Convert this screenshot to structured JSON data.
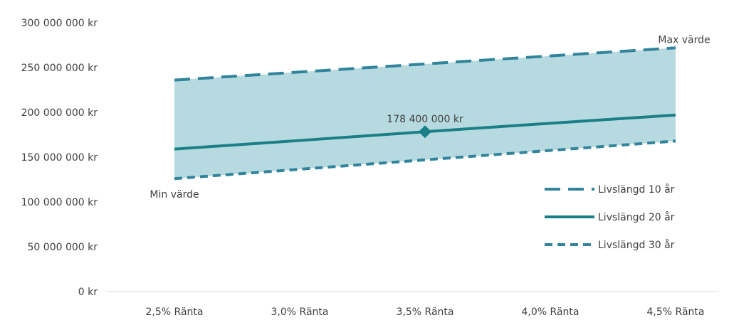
{
  "chart_data": {
    "type": "line",
    "categories": [
      "2,5% Ränta",
      "3,0% Ränta",
      "3,5% Ränta",
      "4,0% Ränta",
      "4,5% Ränta"
    ],
    "ylim": [
      0,
      300000000
    ],
    "yticks": [
      0,
      50000000,
      100000000,
      150000000,
      200000000,
      250000000,
      300000000
    ],
    "ytick_labels": [
      "0 kr",
      "50 000 000 kr",
      "100 000 000 kr",
      "150 000 000 kr",
      "200 000 000 kr",
      "250 000 000 kr",
      "300 000 000 kr"
    ],
    "series": [
      {
        "name": "Livslängd 10 år",
        "style": "long-dash",
        "color": "#31849b",
        "values": [
          236000000,
          245000000,
          254000000,
          263000000,
          272000000
        ]
      },
      {
        "name": "Livslängd 20 år",
        "style": "solid",
        "color": "#1a7f86",
        "values": [
          159000000,
          168600000,
          178400000,
          187800000,
          197000000
        ]
      },
      {
        "name": "Livslängd 30 år",
        "style": "short-dash",
        "color": "#31849b",
        "values": [
          126000000,
          136500000,
          147000000,
          157500000,
          168000000
        ]
      }
    ],
    "band": {
      "upper_series": "Livslängd 10 år",
      "lower_series": "Livslängd 30 år",
      "color": "#b7dae1"
    },
    "annotations": [
      {
        "text": "Max värde",
        "series": 0,
        "point": 4
      },
      {
        "text": "Min värde",
        "series": 2,
        "point": 0
      },
      {
        "text": "178 400 000 kr",
        "series": 1,
        "point": 2
      }
    ],
    "marker": {
      "series": 1,
      "point": 2,
      "shape": "diamond"
    },
    "legend_position": "right",
    "grid": false
  }
}
